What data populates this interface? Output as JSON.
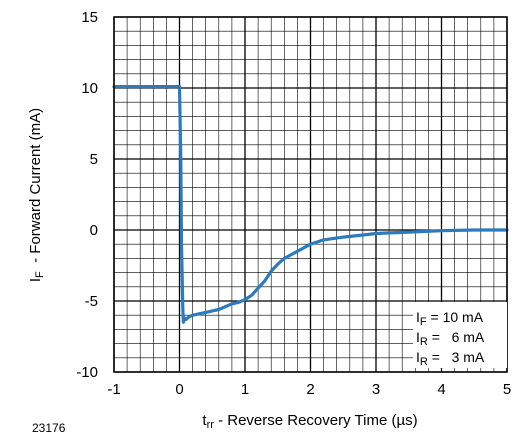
{
  "chart_data": {
    "type": "line",
    "title": "",
    "xlabel": {
      "main": "t",
      "sub": "rr",
      "rest": " - Reverse Recovery Time (µs)"
    },
    "ylabel": {
      "main": "I",
      "sub": "F",
      "rest": "  - Forward Current (mA)"
    },
    "xlim": [
      -1,
      5
    ],
    "ylim": [
      -10,
      15
    ],
    "x_ticks": [
      -1,
      0,
      1,
      2,
      3,
      4,
      5
    ],
    "x_tick_labels": [
      "-1",
      "0",
      "1",
      "2",
      "3",
      "4",
      "5"
    ],
    "y_ticks": [
      -10,
      -5,
      0,
      5,
      10,
      15
    ],
    "y_tick_labels": [
      "-10",
      "-5",
      "0",
      "5",
      "10",
      "15"
    ],
    "grid": true,
    "minor_divisions": 5,
    "series": [
      {
        "color": "#2b7bbf",
        "x": [
          -1.0,
          -0.5,
          0.0,
          0.02,
          0.03,
          0.05,
          0.06,
          0.08,
          0.1,
          0.15,
          0.2,
          0.3,
          0.4,
          0.5,
          0.6,
          0.7,
          0.8,
          0.9,
          1.0,
          1.1,
          1.2,
          1.3,
          1.4,
          1.5,
          1.6,
          1.8,
          2.0,
          2.2,
          2.5,
          2.8,
          3.0,
          3.5,
          4.0,
          4.5,
          5.0
        ],
        "y": [
          10.1,
          10.1,
          10.1,
          5.0,
          -1.0,
          -5.5,
          -6.5,
          -6.2,
          -6.3,
          -6.1,
          -6.0,
          -5.9,
          -5.8,
          -5.7,
          -5.6,
          -5.4,
          -5.2,
          -5.1,
          -4.9,
          -4.6,
          -4.1,
          -3.6,
          -2.9,
          -2.4,
          -2.0,
          -1.5,
          -1.0,
          -0.7,
          -0.5,
          -0.35,
          -0.25,
          -0.15,
          -0.05,
          0.0,
          0.0
        ]
      }
    ],
    "legend": {
      "placement": "bottom-right",
      "entries": [
        {
          "sym": "I",
          "sub": "F",
          "value": " = 10 mA"
        },
        {
          "sym": "I",
          "sub": "R",
          "value": " =   6 mA"
        },
        {
          "sym": "I",
          "sub": "R",
          "value": " =   3 mA"
        }
      ]
    },
    "figure_id": "23176"
  }
}
